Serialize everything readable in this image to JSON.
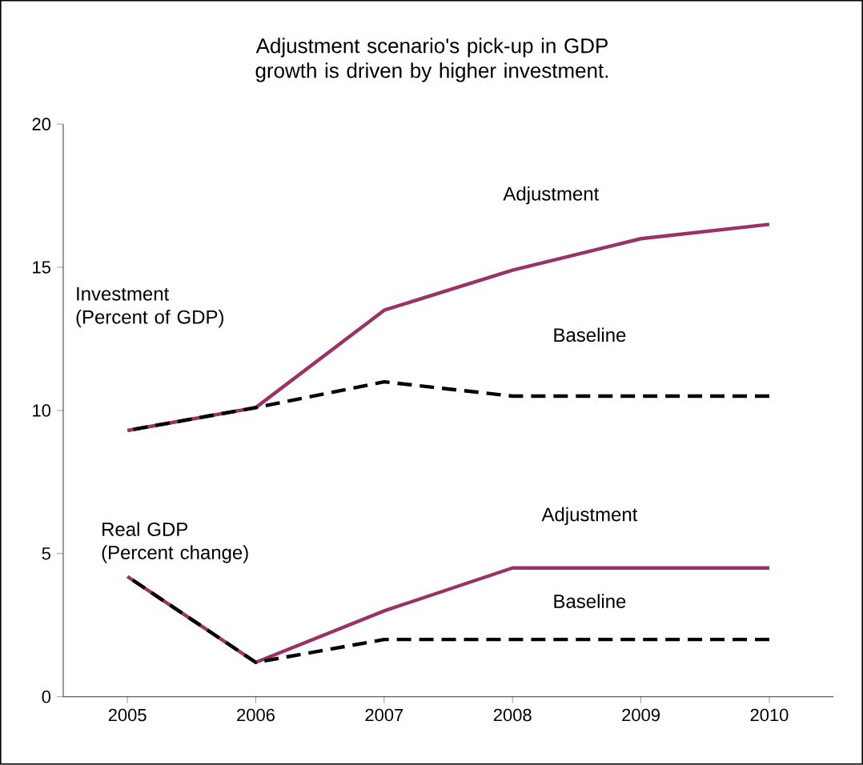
{
  "chart_data": {
    "type": "line",
    "title": "Adjustment scenario's pick-up in GDP growth is driven by higher investment.",
    "categories": [
      "2005",
      "2006",
      "2007",
      "2008",
      "2009",
      "2010"
    ],
    "series": [
      {
        "name": "Adjustment",
        "color": "#993366",
        "line_style": "solid",
        "values": [
          9.3,
          10.1,
          13.5,
          14.9,
          16.0,
          16.5
        ]
      },
      {
        "name": "Baseline",
        "color": "#000000",
        "line_style": "dashed",
        "values": [
          9.3,
          10.1,
          11.0,
          10.5,
          10.5,
          10.5
        ]
      },
      {
        "name": "Adjustment",
        "color": "#993366",
        "line_style": "solid",
        "values": [
          4.2,
          1.2,
          3.0,
          4.5,
          4.5,
          4.5
        ]
      },
      {
        "name": "Baseline",
        "color": "#000000",
        "line_style": "dashed",
        "values": [
          4.2,
          1.2,
          2.0,
          2.0,
          2.0,
          2.0
        ]
      }
    ],
    "annotations": [
      "Investment (Percent of GDP)",
      "Real GDP (Percent change)"
    ],
    "ylim": [
      0,
      20
    ],
    "yticks": [
      0,
      5,
      10,
      15,
      20
    ],
    "grid": false,
    "marker": "none"
  }
}
